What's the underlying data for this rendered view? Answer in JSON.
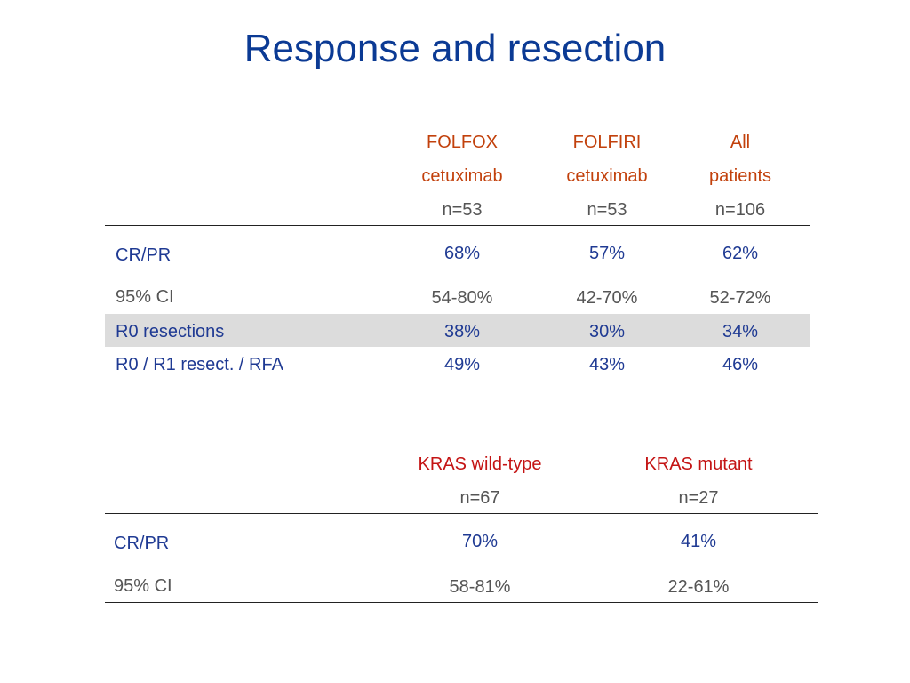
{
  "title": "Response and resection",
  "table1": {
    "columns": [
      {
        "line1": "FOLFOX",
        "line2": "cetuximab",
        "n": "n=53"
      },
      {
        "line1": "FOLFIRI",
        "line2": "cetuximab",
        "n": "n=53"
      },
      {
        "line1": "All",
        "line2": "patients",
        "n": "n=106"
      }
    ],
    "rows": [
      {
        "label": "CR/PR",
        "values": [
          "68%",
          "57%",
          "62%"
        ]
      },
      {
        "label": "95% CI",
        "values": [
          "54-80%",
          "42-70%",
          "52-72%"
        ]
      },
      {
        "label": "R0 resections",
        "values": [
          "38%",
          "30%",
          "34%"
        ]
      },
      {
        "label": "R0 / R1 resect. / RFA",
        "values": [
          "49%",
          "43%",
          "46%"
        ]
      }
    ]
  },
  "table2": {
    "columns": [
      {
        "label": "KRAS wild-type",
        "n": "n=67"
      },
      {
        "label": "KRAS mutant",
        "n": "n=27"
      }
    ],
    "rows": [
      {
        "label": "CR/PR",
        "values": [
          "70%",
          "41%"
        ]
      },
      {
        "label": "95% CI",
        "values": [
          "58-81%",
          "22-61%"
        ]
      }
    ]
  }
}
